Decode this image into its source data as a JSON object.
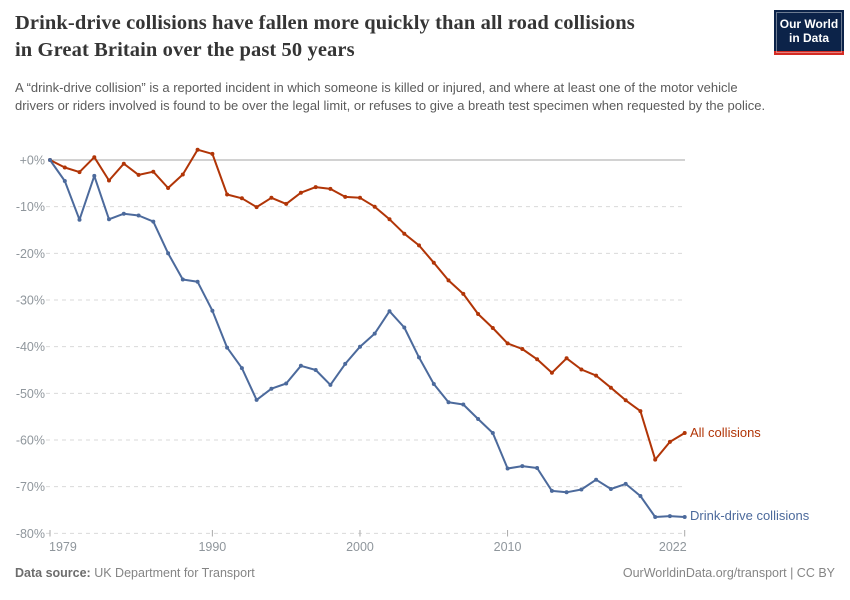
{
  "header": {
    "title": "Drink-drive collisions have fallen more quickly than all road collisions in Great Britain over the past 50 years",
    "title_lines": [
      "Drink-drive collisions have fallen more quickly than all road collisions",
      "in Great Britain over the past 50 years"
    ],
    "subtitle": "A “drink-drive collision” is a reported incident in which someone is killed or injured, and where at least one of the motor vehicle drivers or riders involved is found to be over the legal limit, or refuses to give a breath test specimen when requested by the police.",
    "logo": {
      "line1": "Our World",
      "line2": "in Data",
      "navy": "#0c2349",
      "red": "#d42b23"
    }
  },
  "chart_data": {
    "type": "line",
    "title": "Drink-drive collisions have fallen more quickly than all road collisions in Great Britain over the past 50 years",
    "unit": "% change since 1979",
    "x": [
      1979,
      1980,
      1981,
      1982,
      1983,
      1984,
      1985,
      1986,
      1987,
      1988,
      1989,
      1990,
      1991,
      1992,
      1993,
      1994,
      1995,
      1996,
      1997,
      1998,
      1999,
      2000,
      2001,
      2002,
      2003,
      2004,
      2005,
      2006,
      2007,
      2008,
      2009,
      2010,
      2011,
      2012,
      2013,
      2014,
      2015,
      2016,
      2017,
      2018,
      2019,
      2020,
      2021,
      2022
    ],
    "series": [
      {
        "name": "All collisions",
        "color": "#B13507",
        "values": [
          0,
          -1.6,
          -2.6,
          0.6,
          -4.4,
          -0.8,
          -3.2,
          -2.5,
          -6.0,
          -3.1,
          2.2,
          1.3,
          -7.4,
          -8.2,
          -10.1,
          -8.1,
          -9.4,
          -7.0,
          -5.8,
          -6.2,
          -7.9,
          -8.1,
          -10.0,
          -12.7,
          -15.8,
          -18.3,
          -22.0,
          -25.8,
          -28.7,
          -33.0,
          -36.0,
          -39.3,
          -40.5,
          -42.7,
          -45.6,
          -42.5,
          -44.9,
          -46.2,
          -48.8,
          -51.5,
          -53.8,
          -64.2,
          -60.4,
          -58.5
        ]
      },
      {
        "name": "Drink-drive collisions",
        "color": "#4C6A9C",
        "values": [
          0,
          -4.5,
          -12.8,
          -3.4,
          -12.7,
          -11.5,
          -11.9,
          -13.2,
          -20.0,
          -25.6,
          -26.1,
          -32.3,
          -40.2,
          -44.6,
          -51.4,
          -49.0,
          -47.9,
          -44.1,
          -45.0,
          -48.2,
          -43.7,
          -40.0,
          -37.2,
          -32.4,
          -35.9,
          -42.3,
          -48.0,
          -51.9,
          -52.4,
          -55.5,
          -58.5,
          -66.1,
          -65.6,
          -66.0,
          -70.9,
          -71.2,
          -70.6,
          -68.5,
          -70.5,
          -69.4,
          -72.0,
          -76.5,
          -76.3,
          -76.5
        ]
      }
    ],
    "xlabel": "",
    "ylabel": "",
    "ylim": [
      -80,
      2.5
    ],
    "yticks": [
      {
        "value": 0,
        "label": "+0%"
      },
      {
        "value": -10,
        "label": "-10%"
      },
      {
        "value": -20,
        "label": "-20%"
      },
      {
        "value": -30,
        "label": "-30%"
      },
      {
        "value": -40,
        "label": "-40%"
      },
      {
        "value": -50,
        "label": "-50%"
      },
      {
        "value": -60,
        "label": "-60%"
      },
      {
        "value": -70,
        "label": "-70%"
      },
      {
        "value": -80,
        "label": "-80%"
      }
    ],
    "xticks": [
      {
        "value": 1979,
        "label": "1979"
      },
      {
        "value": 1990,
        "label": "1990"
      },
      {
        "value": 2000,
        "label": "2000"
      },
      {
        "value": 2010,
        "label": "2010"
      },
      {
        "value": 2022,
        "label": "2022"
      }
    ],
    "grid": "horizontal-dashed",
    "zero_line": "solid",
    "legend_position": "end-of-line-right"
  },
  "footer": {
    "source_label": "Data source:",
    "source_value": "UK Department for Transport",
    "credit": "OurWorldinData.org/transport | CC BY"
  }
}
